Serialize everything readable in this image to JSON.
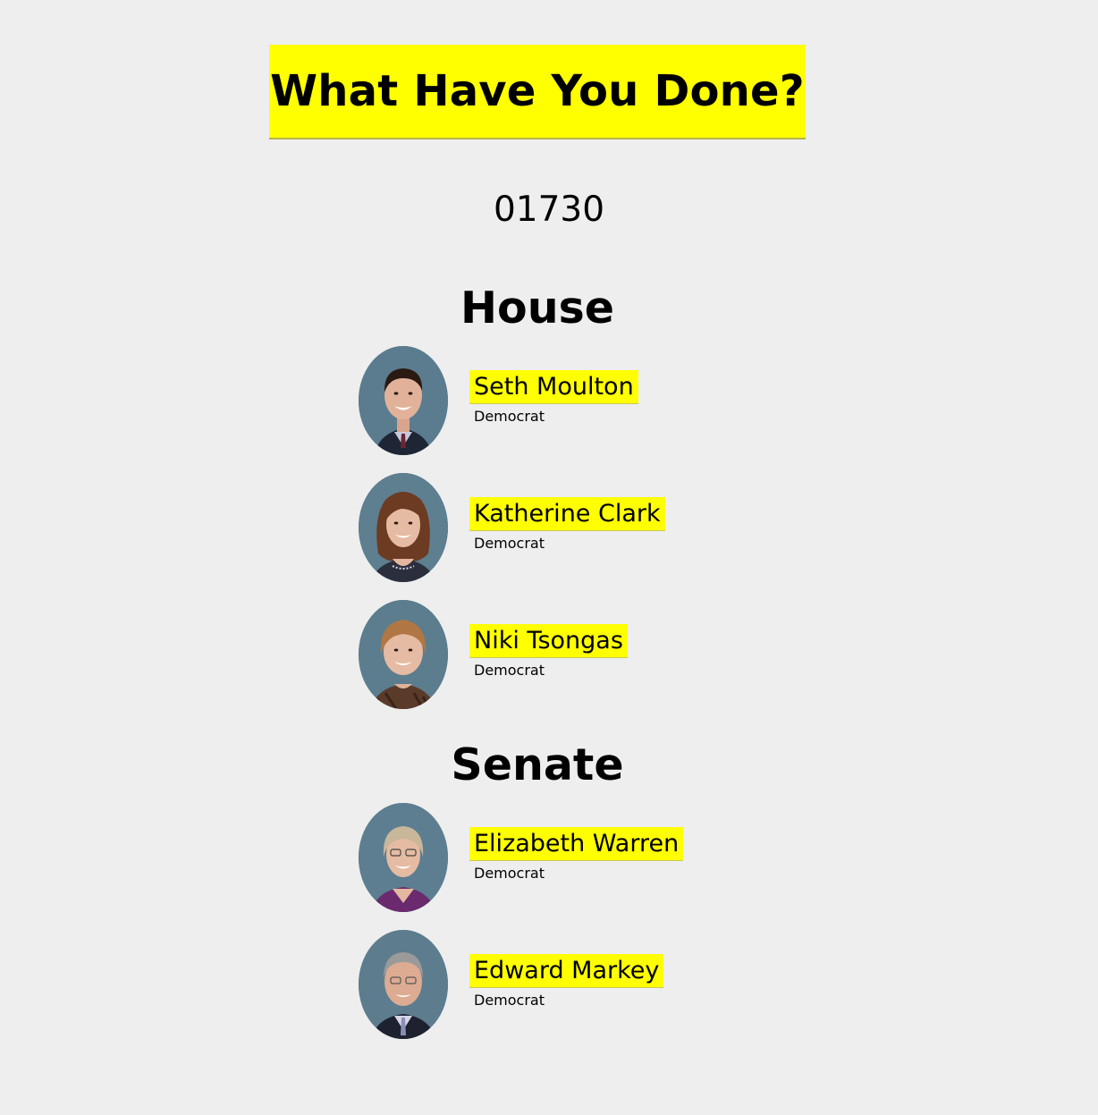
{
  "header": {
    "title": "What Have You Done?"
  },
  "zip_code": "01730",
  "house": {
    "title": "House",
    "members": [
      {
        "name": "Seth Moulton",
        "party": "Democrat"
      },
      {
        "name": "Katherine Clark",
        "party": "Democrat"
      },
      {
        "name": "Niki Tsongas",
        "party": "Democrat"
      }
    ]
  },
  "senate": {
    "title": "Senate",
    "members": [
      {
        "name": "Elizabeth Warren",
        "party": "Democrat"
      },
      {
        "name": "Edward Markey",
        "party": "Democrat"
      }
    ]
  },
  "colors": {
    "background": "#eeeeee",
    "highlight": "#ffff00",
    "portrait_bg": "#5f7f91"
  }
}
